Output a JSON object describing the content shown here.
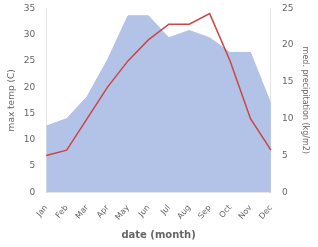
{
  "chart_data": {
    "type": "line",
    "categories": [
      "Jan",
      "Feb",
      "Mar",
      "Apr",
      "May",
      "Jun",
      "Jul",
      "Aug",
      "Sep",
      "Oct",
      "Nov",
      "Dec"
    ],
    "series": [
      {
        "type": "area",
        "color": "#b3c3e8",
        "axis": "y2",
        "values": [
          9,
          10,
          13,
          18,
          24,
          24,
          21,
          22,
          21,
          19,
          19,
          12
        ]
      },
      {
        "type": "line",
        "color": "#cc4444",
        "values": [
          7,
          8,
          14,
          20,
          25,
          29,
          32,
          32,
          34,
          25,
          14,
          8
        ]
      }
    ],
    "xlabel": "date (month)",
    "ylabel": "max temp (C)",
    "y2label": "med. precipitation (kg/m2)",
    "ylim": [
      0,
      35
    ],
    "yticks": [
      0,
      5,
      10,
      15,
      20,
      25,
      30,
      35
    ],
    "y2lim": [
      0,
      25
    ],
    "y2ticks": [
      0,
      5,
      10,
      15,
      20,
      25
    ],
    "grid": false
  }
}
